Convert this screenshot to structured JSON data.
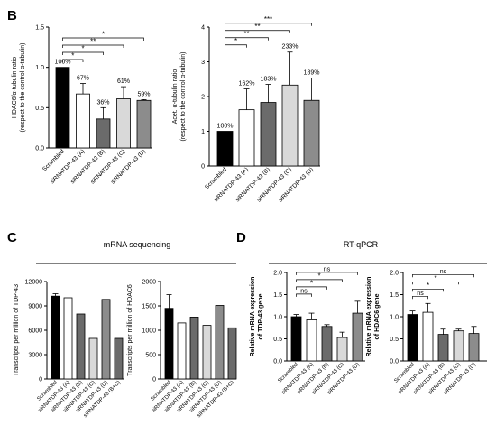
{
  "panels": {
    "B": {
      "letter": "B"
    },
    "C": {
      "letter": "C",
      "heading": "mRNA sequencing"
    },
    "D": {
      "letter": "D",
      "heading": "RT-qPCR"
    }
  },
  "colors": {
    "black": "#000000",
    "white": "#ffffff",
    "dark_grey": "#6b6b6b",
    "light_grey": "#d9d9d9",
    "mid_grey": "#8c8c8c"
  },
  "chart_data": [
    {
      "id": "b1",
      "type": "bar",
      "ylabel": "HDAC6/α-tubulin ratio\n(respect to the control α-tubulin)",
      "categories": [
        "Scrambled",
        "siRNATDP-43 (A)",
        "siRNATDP-43 (B)",
        "siRNATDP-43 (C)",
        "siRNATDP-43 (D)"
      ],
      "values": [
        1.0,
        0.67,
        0.36,
        0.61,
        0.59
      ],
      "errors": [
        0,
        0.13,
        0.14,
        0.15,
        0.01
      ],
      "value_labels": [
        "100%",
        "67%",
        "36%",
        "61%",
        "59%"
      ],
      "ylim": [
        0,
        1.5
      ],
      "yticks": [
        0.0,
        0.5,
        1.0,
        1.5
      ],
      "colors": [
        "#000000",
        "#ffffff",
        "#6b6b6b",
        "#d9d9d9",
        "#8c8c8c"
      ],
      "significance": [
        {
          "from": 0,
          "to": 1,
          "label": "*"
        },
        {
          "from": 0,
          "to": 2,
          "label": "*"
        },
        {
          "from": 0,
          "to": 3,
          "label": "**"
        },
        {
          "from": 0,
          "to": 4,
          "label": "*"
        }
      ]
    },
    {
      "id": "b2",
      "type": "bar",
      "ylabel": "Acet. α-tubulin ratio\n(respect to the control α-tubulin)",
      "categories": [
        "Scrambled",
        "siRNATDP-43 (A)",
        "siRNATDP-43 (B)",
        "siRNATDP-43 (C)",
        "siRNATDP-43 (D)"
      ],
      "values": [
        1.0,
        1.62,
        1.83,
        2.33,
        1.89
      ],
      "errors": [
        0,
        0.6,
        0.52,
        0.95,
        0.64
      ],
      "value_labels": [
        "100%",
        "162%",
        "183%",
        "233%",
        "189%"
      ],
      "ylim": [
        0,
        4
      ],
      "yticks": [
        0,
        1,
        2,
        3,
        4
      ],
      "colors": [
        "#000000",
        "#ffffff",
        "#6b6b6b",
        "#d9d9d9",
        "#8c8c8c"
      ],
      "significance": [
        {
          "from": 0,
          "to": 1,
          "label": "*"
        },
        {
          "from": 0,
          "to": 2,
          "label": "**"
        },
        {
          "from": 0,
          "to": 3,
          "label": "**"
        },
        {
          "from": 0,
          "to": 4,
          "label": "***"
        }
      ]
    },
    {
      "id": "c1",
      "type": "bar",
      "ylabel": "Transcripts per million of TDP-43",
      "categories": [
        "Scrambled",
        "siRNATDP-43 (A)",
        "siRNATDP-43 (B)",
        "siRNATDP-43 (C)",
        "siRNATDP-43 (D)",
        "siRNATDP-43 (B+C)"
      ],
      "values": [
        10200,
        10000,
        8000,
        5000,
        9800,
        5000
      ],
      "errors": [
        300,
        0,
        0,
        0,
        0,
        0
      ],
      "ylim": [
        0,
        12000
      ],
      "yticks": [
        0,
        3000,
        6000,
        9000,
        12000
      ],
      "colors": [
        "#000000",
        "#ffffff",
        "#6b6b6b",
        "#d9d9d9",
        "#8c8c8c",
        "#6b6b6b"
      ],
      "significance": []
    },
    {
      "id": "c2",
      "type": "bar",
      "ylabel": "Transcripts per million of HDAC6",
      "categories": [
        "Scrambled",
        "siRNATDP-43 (A)",
        "siRNATDP-43 (B)",
        "siRNATDP-43 (C)",
        "siRNATDP-43 (D)",
        "siRNATDP-43 (B+C)"
      ],
      "values": [
        1450,
        1150,
        1270,
        1100,
        1510,
        1050
      ],
      "errors": [
        280,
        0,
        0,
        0,
        0,
        0
      ],
      "ylim": [
        0,
        2000
      ],
      "yticks": [
        0,
        500,
        1000,
        1500,
        2000
      ],
      "colors": [
        "#000000",
        "#ffffff",
        "#6b6b6b",
        "#d9d9d9",
        "#8c8c8c",
        "#6b6b6b"
      ],
      "significance": []
    },
    {
      "id": "d1",
      "type": "bar",
      "ylabel": "Relative mRNA expression\nof TDP-43 gene",
      "categories": [
        "Scrambled",
        "siRNATDP-43 (A)",
        "siRNATDP-43 (B)",
        "siRNATDP-43 (C)",
        "siRNATDP-43 (D)"
      ],
      "values": [
        1.0,
        0.93,
        0.78,
        0.53,
        1.08
      ],
      "errors": [
        0.05,
        0.15,
        0.04,
        0.12,
        0.27
      ],
      "ylim": [
        0,
        2.0
      ],
      "yticks": [
        0.0,
        0.5,
        1.0,
        1.5,
        2.0
      ],
      "colors": [
        "#000000",
        "#ffffff",
        "#6b6b6b",
        "#d9d9d9",
        "#8c8c8c"
      ],
      "significance": [
        {
          "from": 0,
          "to": 1,
          "label": "ns"
        },
        {
          "from": 0,
          "to": 2,
          "label": "*"
        },
        {
          "from": 0,
          "to": 3,
          "label": "*"
        },
        {
          "from": 0,
          "to": 4,
          "label": "ns"
        }
      ]
    },
    {
      "id": "d2",
      "type": "bar",
      "ylabel": "Relative mRNA expression\nof HDAC6 gene",
      "categories": [
        "Scrambled",
        "siRNATDP-43 (A)",
        "siRNATDP-43 (B)",
        "siRNATDP-43 (C)",
        "siRNATDP-43 (D)"
      ],
      "values": [
        1.05,
        1.1,
        0.6,
        0.68,
        0.62
      ],
      "errors": [
        0.08,
        0.2,
        0.12,
        0.04,
        0.16
      ],
      "ylim": [
        0,
        2.0
      ],
      "yticks": [
        0.0,
        0.5,
        1.0,
        1.5,
        2.0
      ],
      "colors": [
        "#000000",
        "#ffffff",
        "#6b6b6b",
        "#d9d9d9",
        "#8c8c8c"
      ],
      "significance": [
        {
          "from": 0,
          "to": 1,
          "label": "ns"
        },
        {
          "from": 0,
          "to": 2,
          "label": "*"
        },
        {
          "from": 0,
          "to": 3,
          "label": "*"
        },
        {
          "from": 0,
          "to": 4,
          "label": "ns"
        }
      ]
    }
  ]
}
